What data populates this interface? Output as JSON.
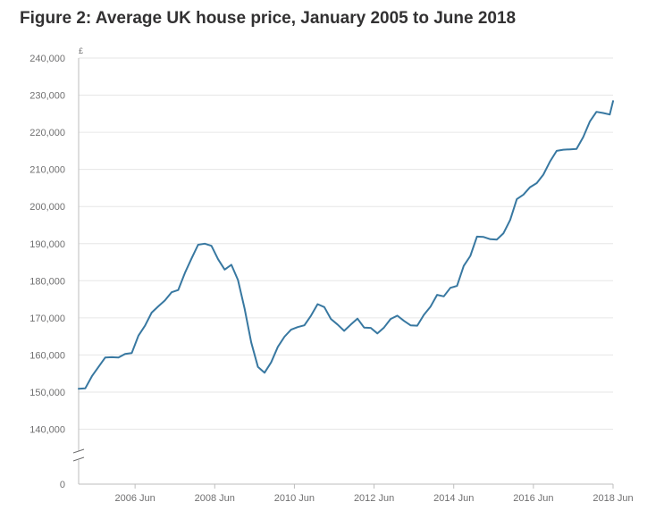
{
  "title": "Figure 2: Average UK house price, January 2005 to June 2018",
  "chart_data": {
    "type": "line",
    "title": "Figure 2: Average UK house price, January 2005 to June 2018",
    "xlabel": "",
    "ylabel": "£",
    "y_unit": "£",
    "xlim": [
      "2005-01",
      "2018-06"
    ],
    "ylim": [
      0,
      240000
    ],
    "axis_break": [
      0,
      140000
    ],
    "grid": true,
    "line_color": "#3878a1",
    "y_ticks": [
      0,
      140000,
      150000,
      160000,
      170000,
      180000,
      190000,
      200000,
      210000,
      220000,
      230000,
      240000
    ],
    "y_tick_labels": [
      "0",
      "140,000",
      "150,000",
      "160,000",
      "170,000",
      "180,000",
      "190,000",
      "200,000",
      "210,000",
      "220,000",
      "230,000",
      "240,000"
    ],
    "x_ticks": [
      "2006-06",
      "2008-06",
      "2010-06",
      "2012-06",
      "2014-06",
      "2016-06",
      "2018-06"
    ],
    "x_tick_labels": [
      "2006 Jun",
      "2008 Jun",
      "2010 Jun",
      "2012 Jun",
      "2014 Jun",
      "2016 Jun",
      "2018 Jun"
    ],
    "series": [
      {
        "values": [
          [
            "2005-01",
            150900
          ],
          [
            "2005-03",
            151000
          ],
          [
            "2005-05",
            154300
          ],
          [
            "2005-07",
            156800
          ],
          [
            "2005-09",
            159300
          ],
          [
            "2005-11",
            159400
          ],
          [
            "2006-01",
            159300
          ],
          [
            "2006-03",
            160300
          ],
          [
            "2006-05",
            160500
          ],
          [
            "2006-07",
            165200
          ],
          [
            "2006-09",
            167900
          ],
          [
            "2006-11",
            171400
          ],
          [
            "2007-01",
            173100
          ],
          [
            "2007-03",
            174700
          ],
          [
            "2007-05",
            176900
          ],
          [
            "2007-07",
            177500
          ],
          [
            "2007-09",
            182100
          ],
          [
            "2007-11",
            186000
          ],
          [
            "2008-01",
            189700
          ],
          [
            "2008-03",
            190000
          ],
          [
            "2008-05",
            189400
          ],
          [
            "2008-07",
            185800
          ],
          [
            "2008-09",
            183000
          ],
          [
            "2008-11",
            184300
          ],
          [
            "2009-01",
            180200
          ],
          [
            "2009-03",
            172500
          ],
          [
            "2009-05",
            163400
          ],
          [
            "2009-07",
            156800
          ],
          [
            "2009-09",
            155200
          ],
          [
            "2009-11",
            158000
          ],
          [
            "2010-01",
            162200
          ],
          [
            "2010-03",
            164900
          ],
          [
            "2010-05",
            166800
          ],
          [
            "2010-07",
            167500
          ],
          [
            "2010-09",
            168000
          ],
          [
            "2010-11",
            170600
          ],
          [
            "2011-01",
            173700
          ],
          [
            "2011-03",
            172900
          ],
          [
            "2011-05",
            169700
          ],
          [
            "2011-07",
            168200
          ],
          [
            "2011-09",
            166500
          ],
          [
            "2011-11",
            168200
          ],
          [
            "2012-01",
            169800
          ],
          [
            "2012-03",
            167400
          ],
          [
            "2012-05",
            167300
          ],
          [
            "2012-07",
            165800
          ],
          [
            "2012-09",
            167400
          ],
          [
            "2012-11",
            169700
          ],
          [
            "2013-01",
            170600
          ],
          [
            "2013-03",
            169200
          ],
          [
            "2013-05",
            168000
          ],
          [
            "2013-07",
            167900
          ],
          [
            "2013-09",
            170800
          ],
          [
            "2013-11",
            173000
          ],
          [
            "2014-01",
            176200
          ],
          [
            "2014-03",
            175800
          ],
          [
            "2014-05",
            178100
          ],
          [
            "2014-07",
            178600
          ],
          [
            "2014-09",
            184000
          ],
          [
            "2014-11",
            186700
          ],
          [
            "2015-01",
            191900
          ],
          [
            "2015-03",
            191800
          ],
          [
            "2015-05",
            191200
          ],
          [
            "2015-07",
            191100
          ],
          [
            "2015-09",
            192800
          ],
          [
            "2015-11",
            196400
          ],
          [
            "2016-01",
            202000
          ],
          [
            "2016-03",
            203200
          ],
          [
            "2016-05",
            205200
          ],
          [
            "2016-07",
            206300
          ],
          [
            "2016-09",
            208600
          ],
          [
            "2016-11",
            212100
          ],
          [
            "2017-01",
            215000
          ],
          [
            "2017-03",
            215300
          ],
          [
            "2017-05",
            215400
          ],
          [
            "2017-07",
            215500
          ],
          [
            "2017-09",
            218700
          ],
          [
            "2017-11",
            222900
          ],
          [
            "2018-01",
            225500
          ],
          [
            "2018-03",
            225200
          ],
          [
            "2018-05",
            224800
          ],
          [
            "2018-06",
            228400
          ]
        ]
      }
    ]
  }
}
